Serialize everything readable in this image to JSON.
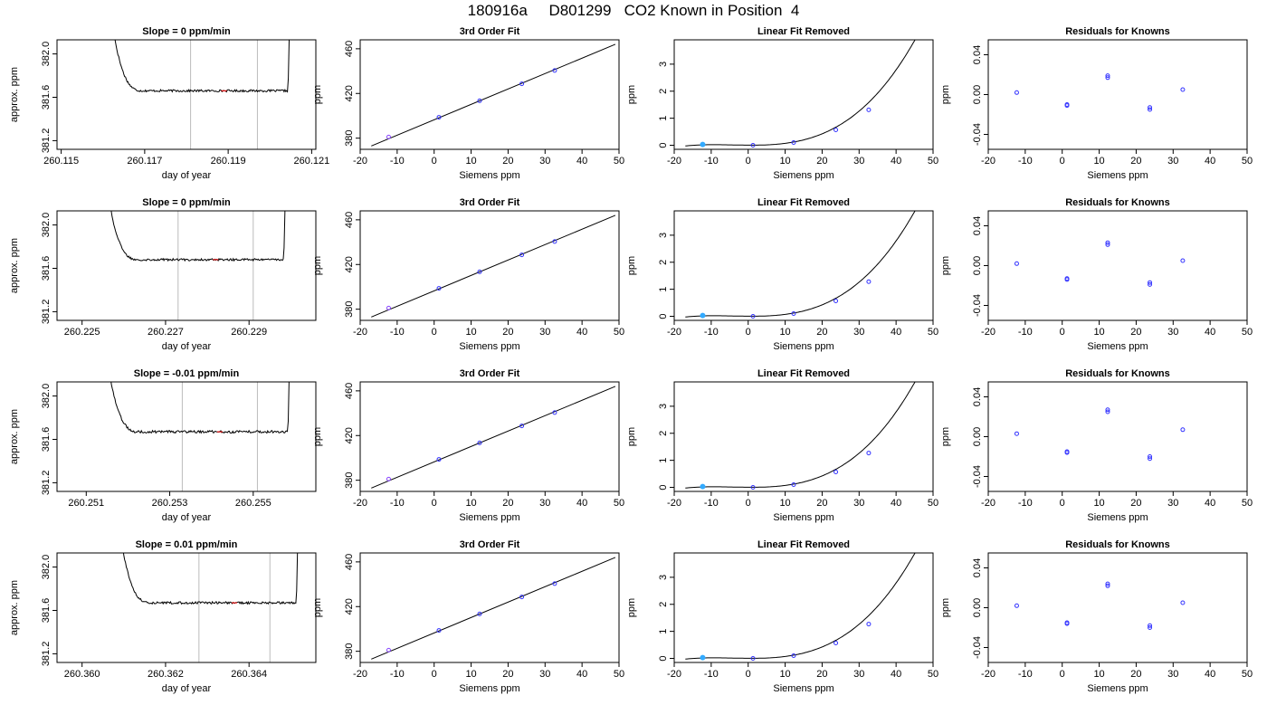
{
  "page": {
    "title": "180916a     D801299   CO2 Known in Position  4"
  },
  "colors": {
    "curve": "#000000",
    "known_point": "#3333ff",
    "reference_point": "#8844ff",
    "excluded_point": "#33aaff",
    "marker_vline": "#bbbbbb",
    "red_mark": "#ff0000"
  },
  "chart_data": [
    {
      "type": "line",
      "row": 1,
      "col": 1,
      "title": "Slope =  0  ppm/min",
      "xlabel": "day of year",
      "ylabel": "approx. ppm",
      "xlim": [
        260.1149,
        260.1211
      ],
      "ylim": [
        381.12,
        382.13
      ],
      "xticks": [
        260.115,
        260.117,
        260.119,
        260.121
      ],
      "xtick_labels": [
        "260.115",
        "260.117",
        "260.119",
        "260.121"
      ],
      "yticks": [
        381.2,
        381.6,
        382.0
      ],
      "ytick_labels": [
        "381.2",
        "381.6",
        "382.0"
      ],
      "vlines": [
        260.1181,
        260.1197
      ],
      "trace": {
        "x_start": 260.1161,
        "x_end": 260.1205,
        "level": 381.66,
        "rise_end": 382.13,
        "noise": 0.01
      }
    },
    {
      "type": "scatter",
      "row": 1,
      "col": 2,
      "title": "3rd Order Fit",
      "xlabel": "Siemens ppm",
      "ylabel": "ppm",
      "xlim": [
        -20,
        50
      ],
      "ylim": [
        370,
        468
      ],
      "xticks": [
        -20,
        -10,
        0,
        10,
        20,
        30,
        40,
        50
      ],
      "yticks": [
        380,
        420,
        460
      ],
      "fit_line": {
        "x": [
          -17,
          49
        ],
        "y": [
          373,
          464
        ]
      },
      "points": [
        {
          "x": -12.3,
          "y": 381,
          "kind": "reference"
        },
        {
          "x": 1.3,
          "y": 398.7,
          "kind": "known"
        },
        {
          "x": 12.3,
          "y": 413.4,
          "kind": "known"
        },
        {
          "x": 23.7,
          "y": 428.6,
          "kind": "known"
        },
        {
          "x": 32.6,
          "y": 440.6,
          "kind": "known"
        }
      ]
    },
    {
      "type": "scatter",
      "row": 1,
      "col": 3,
      "title": "Linear Fit Removed",
      "xlabel": "Siemens ppm",
      "ylabel": "ppm",
      "xlim": [
        -20,
        50
      ],
      "ylim": [
        -0.15,
        3.9
      ],
      "xticks": [
        -20,
        -10,
        0,
        10,
        20,
        30,
        40,
        50
      ],
      "yticks": [
        0,
        1,
        2,
        3
      ],
      "curve_x": [
        -17,
        49
      ],
      "points": [
        {
          "x": -12.3,
          "y": 0.03,
          "kind": "excluded"
        },
        {
          "x": 1.3,
          "y": 0.0,
          "kind": "known"
        },
        {
          "x": 12.3,
          "y": 0.1,
          "kind": "known"
        },
        {
          "x": 23.7,
          "y": 0.57,
          "kind": "known"
        },
        {
          "x": 32.6,
          "y": 1.31,
          "kind": "known"
        }
      ]
    },
    {
      "type": "scatter",
      "row": 1,
      "col": 4,
      "title": "Residuals for Knowns",
      "xlabel": "Siemens ppm",
      "ylabel": "ppm",
      "xlim": [
        -20,
        50
      ],
      "ylim": [
        -0.055,
        0.055
      ],
      "xticks": [
        -20,
        -10,
        0,
        10,
        20,
        30,
        40,
        50
      ],
      "yticks": [
        -0.04,
        0.0,
        0.04
      ],
      "ytick_labels": [
        "-0.04",
        "0.00",
        "0.04"
      ],
      "points": [
        {
          "x": -12.3,
          "y": 0.002,
          "kind": "known"
        },
        {
          "x": 1.3,
          "y": -0.01,
          "kind": "known"
        },
        {
          "x": 1.3,
          "y": -0.011,
          "kind": "known"
        },
        {
          "x": 12.3,
          "y": 0.017,
          "kind": "known"
        },
        {
          "x": 12.3,
          "y": 0.019,
          "kind": "known"
        },
        {
          "x": 23.7,
          "y": -0.013,
          "kind": "known"
        },
        {
          "x": 23.7,
          "y": -0.015,
          "kind": "known"
        },
        {
          "x": 32.6,
          "y": 0.005,
          "kind": "known"
        }
      ]
    },
    {
      "type": "line",
      "row": 2,
      "col": 1,
      "title": "Slope =  0  ppm/min",
      "xlabel": "day of year",
      "ylabel": "approx. ppm",
      "xlim": [
        260.2244,
        260.2306
      ],
      "ylim": [
        381.12,
        382.13
      ],
      "xticks": [
        260.225,
        260.227,
        260.229
      ],
      "xtick_labels": [
        "260.225",
        "260.227",
        "260.229"
      ],
      "yticks": [
        381.2,
        381.6,
        382.0
      ],
      "ytick_labels": [
        "381.2",
        "381.6",
        "382.0"
      ],
      "vlines": [
        260.2273,
        260.2291
      ],
      "trace": {
        "x_start": 260.2255,
        "x_end": 260.2299,
        "level": 381.68,
        "rise_end": 382.13,
        "noise": 0.01
      }
    },
    {
      "type": "scatter",
      "row": 2,
      "col": 2,
      "title": "3rd Order Fit",
      "xlabel": "Siemens ppm",
      "ylabel": "ppm",
      "xlim": [
        -20,
        50
      ],
      "ylim": [
        370,
        468
      ],
      "xticks": [
        -20,
        -10,
        0,
        10,
        20,
        30,
        40,
        50
      ],
      "yticks": [
        380,
        420,
        460
      ],
      "fit_line": {
        "x": [
          -17,
          49
        ],
        "y": [
          373,
          464
        ]
      },
      "points": [
        {
          "x": -12.3,
          "y": 381,
          "kind": "reference"
        },
        {
          "x": 1.3,
          "y": 398.7,
          "kind": "known"
        },
        {
          "x": 12.3,
          "y": 413.4,
          "kind": "known"
        },
        {
          "x": 23.7,
          "y": 428.6,
          "kind": "known"
        },
        {
          "x": 32.6,
          "y": 440.6,
          "kind": "known"
        }
      ]
    },
    {
      "type": "scatter",
      "row": 2,
      "col": 3,
      "title": "Linear Fit Removed",
      "xlabel": "Siemens ppm",
      "ylabel": "ppm",
      "xlim": [
        -20,
        50
      ],
      "ylim": [
        -0.15,
        3.9
      ],
      "xticks": [
        -20,
        -10,
        0,
        10,
        20,
        30,
        40,
        50
      ],
      "yticks": [
        0,
        1,
        2,
        3
      ],
      "curve_x": [
        -17,
        49
      ],
      "points": [
        {
          "x": -12.3,
          "y": 0.03,
          "kind": "excluded"
        },
        {
          "x": 1.3,
          "y": 0.0,
          "kind": "known"
        },
        {
          "x": 12.3,
          "y": 0.1,
          "kind": "known"
        },
        {
          "x": 23.7,
          "y": 0.57,
          "kind": "known"
        },
        {
          "x": 32.6,
          "y": 1.28,
          "kind": "known"
        }
      ]
    },
    {
      "type": "scatter",
      "row": 2,
      "col": 4,
      "title": "Residuals for Knowns",
      "xlabel": "Siemens ppm",
      "ylabel": "ppm",
      "xlim": [
        -20,
        50
      ],
      "ylim": [
        -0.055,
        0.055
      ],
      "xticks": [
        -20,
        -10,
        0,
        10,
        20,
        30,
        40,
        50
      ],
      "yticks": [
        -0.04,
        0.0,
        0.04
      ],
      "ytick_labels": [
        "-0.04",
        "0.00",
        "0.04"
      ],
      "points": [
        {
          "x": -12.3,
          "y": 0.002,
          "kind": "known"
        },
        {
          "x": 1.3,
          "y": -0.013,
          "kind": "known"
        },
        {
          "x": 1.3,
          "y": -0.014,
          "kind": "known"
        },
        {
          "x": 12.3,
          "y": 0.021,
          "kind": "known"
        },
        {
          "x": 12.3,
          "y": 0.023,
          "kind": "known"
        },
        {
          "x": 23.7,
          "y": -0.017,
          "kind": "known"
        },
        {
          "x": 23.7,
          "y": -0.019,
          "kind": "known"
        },
        {
          "x": 32.6,
          "y": 0.005,
          "kind": "known"
        }
      ]
    },
    {
      "type": "line",
      "row": 3,
      "col": 1,
      "title": "Slope =  -0.01  ppm/min",
      "xlabel": "day of year",
      "ylabel": "approx. ppm",
      "xlim": [
        260.2503,
        260.2565
      ],
      "ylim": [
        381.12,
        382.13
      ],
      "xticks": [
        260.251,
        260.253,
        260.255
      ],
      "xtick_labels": [
        "260.251",
        "260.253",
        "260.255"
      ],
      "yticks": [
        381.2,
        381.6,
        382.0
      ],
      "ytick_labels": [
        "381.2",
        "381.6",
        "382.0"
      ],
      "vlines": [
        260.2533,
        260.2551
      ],
      "trace": {
        "x_start": 260.2514,
        "x_end": 260.2559,
        "level": 381.67,
        "rise_end": 382.13,
        "noise": 0.012
      }
    },
    {
      "type": "scatter",
      "row": 3,
      "col": 2,
      "title": "3rd Order Fit",
      "xlabel": "Siemens ppm",
      "ylabel": "ppm",
      "xlim": [
        -20,
        50
      ],
      "ylim": [
        370,
        468
      ],
      "xticks": [
        -20,
        -10,
        0,
        10,
        20,
        30,
        40,
        50
      ],
      "yticks": [
        380,
        420,
        460
      ],
      "fit_line": {
        "x": [
          -17,
          49
        ],
        "y": [
          373,
          464
        ]
      },
      "points": [
        {
          "x": -12.3,
          "y": 381,
          "kind": "reference"
        },
        {
          "x": 1.3,
          "y": 398.7,
          "kind": "known"
        },
        {
          "x": 12.3,
          "y": 413.4,
          "kind": "known"
        },
        {
          "x": 23.7,
          "y": 428.6,
          "kind": "known"
        },
        {
          "x": 32.6,
          "y": 440.6,
          "kind": "known"
        }
      ]
    },
    {
      "type": "scatter",
      "row": 3,
      "col": 3,
      "title": "Linear Fit Removed",
      "xlabel": "Siemens ppm",
      "ylabel": "ppm",
      "xlim": [
        -20,
        50
      ],
      "ylim": [
        -0.15,
        3.9
      ],
      "xticks": [
        -20,
        -10,
        0,
        10,
        20,
        30,
        40,
        50
      ],
      "yticks": [
        0,
        1,
        2,
        3
      ],
      "curve_x": [
        -17,
        49
      ],
      "points": [
        {
          "x": -12.3,
          "y": 0.03,
          "kind": "excluded"
        },
        {
          "x": 1.3,
          "y": 0.0,
          "kind": "known"
        },
        {
          "x": 12.3,
          "y": 0.1,
          "kind": "known"
        },
        {
          "x": 23.7,
          "y": 0.57,
          "kind": "known"
        },
        {
          "x": 32.6,
          "y": 1.27,
          "kind": "known"
        }
      ]
    },
    {
      "type": "scatter",
      "row": 3,
      "col": 4,
      "title": "Residuals for Knowns",
      "xlabel": "Siemens ppm",
      "ylabel": "ppm",
      "xlim": [
        -20,
        50
      ],
      "ylim": [
        -0.055,
        0.055
      ],
      "xticks": [
        -20,
        -10,
        0,
        10,
        20,
        30,
        40,
        50
      ],
      "yticks": [
        -0.04,
        0.0,
        0.04
      ],
      "ytick_labels": [
        "-0.04",
        "0.00",
        "0.04"
      ],
      "points": [
        {
          "x": -12.3,
          "y": 0.003,
          "kind": "known"
        },
        {
          "x": 1.3,
          "y": -0.015,
          "kind": "known"
        },
        {
          "x": 1.3,
          "y": -0.016,
          "kind": "known"
        },
        {
          "x": 12.3,
          "y": 0.025,
          "kind": "known"
        },
        {
          "x": 12.3,
          "y": 0.027,
          "kind": "known"
        },
        {
          "x": 23.7,
          "y": -0.02,
          "kind": "known"
        },
        {
          "x": 23.7,
          "y": -0.022,
          "kind": "known"
        },
        {
          "x": 32.6,
          "y": 0.007,
          "kind": "known"
        }
      ]
    },
    {
      "type": "line",
      "row": 4,
      "col": 1,
      "title": "Slope =  0.01  ppm/min",
      "xlabel": "day of year",
      "ylabel": "approx. ppm",
      "xlim": [
        260.3594,
        260.3656
      ],
      "ylim": [
        381.12,
        382.13
      ],
      "xticks": [
        260.36,
        260.362,
        260.364
      ],
      "xtick_labels": [
        "260.360",
        "260.362",
        "260.364"
      ],
      "yticks": [
        381.2,
        381.6,
        382.0
      ],
      "ytick_labels": [
        "381.2",
        "381.6",
        "382.0"
      ],
      "vlines": [
        260.3628,
        260.3645
      ],
      "trace": {
        "x_start": 260.3608,
        "x_end": 260.3652,
        "level": 381.67,
        "rise_end": 382.13,
        "noise": 0.01
      }
    },
    {
      "type": "scatter",
      "row": 4,
      "col": 2,
      "title": "3rd Order Fit",
      "xlabel": "Siemens ppm",
      "ylabel": "ppm",
      "xlim": [
        -20,
        50
      ],
      "ylim": [
        370,
        468
      ],
      "xticks": [
        -20,
        -10,
        0,
        10,
        20,
        30,
        40,
        50
      ],
      "yticks": [
        380,
        420,
        460
      ],
      "fit_line": {
        "x": [
          -17,
          49
        ],
        "y": [
          373,
          464
        ]
      },
      "points": [
        {
          "x": -12.3,
          "y": 381,
          "kind": "reference"
        },
        {
          "x": 1.3,
          "y": 398.7,
          "kind": "known"
        },
        {
          "x": 12.3,
          "y": 413.4,
          "kind": "known"
        },
        {
          "x": 23.7,
          "y": 428.6,
          "kind": "known"
        },
        {
          "x": 32.6,
          "y": 440.6,
          "kind": "known"
        }
      ]
    },
    {
      "type": "scatter",
      "row": 4,
      "col": 3,
      "title": "Linear Fit Removed",
      "xlabel": "Siemens ppm",
      "ylabel": "ppm",
      "xlim": [
        -20,
        50
      ],
      "ylim": [
        -0.15,
        3.9
      ],
      "xticks": [
        -20,
        -10,
        0,
        10,
        20,
        30,
        40,
        50
      ],
      "yticks": [
        0,
        1,
        2,
        3
      ],
      "curve_x": [
        -17,
        49
      ],
      "points": [
        {
          "x": -12.3,
          "y": 0.03,
          "kind": "excluded"
        },
        {
          "x": 1.3,
          "y": 0.0,
          "kind": "known"
        },
        {
          "x": 12.3,
          "y": 0.1,
          "kind": "known"
        },
        {
          "x": 23.7,
          "y": 0.57,
          "kind": "known"
        },
        {
          "x": 32.6,
          "y": 1.27,
          "kind": "known"
        }
      ]
    },
    {
      "type": "scatter",
      "row": 4,
      "col": 4,
      "title": "Residuals for Knowns",
      "xlabel": "Siemens ppm",
      "ylabel": "ppm",
      "xlim": [
        -20,
        50
      ],
      "ylim": [
        -0.055,
        0.055
      ],
      "xticks": [
        -20,
        -10,
        0,
        10,
        20,
        30,
        40,
        50
      ],
      "yticks": [
        -0.04,
        0.0,
        0.04
      ],
      "ytick_labels": [
        "-0.04",
        "0.00",
        "0.04"
      ],
      "points": [
        {
          "x": -12.3,
          "y": 0.002,
          "kind": "known"
        },
        {
          "x": 1.3,
          "y": -0.015,
          "kind": "known"
        },
        {
          "x": 1.3,
          "y": -0.016,
          "kind": "known"
        },
        {
          "x": 12.3,
          "y": 0.022,
          "kind": "known"
        },
        {
          "x": 12.3,
          "y": 0.024,
          "kind": "known"
        },
        {
          "x": 23.7,
          "y": -0.018,
          "kind": "known"
        },
        {
          "x": 23.7,
          "y": -0.02,
          "kind": "known"
        },
        {
          "x": 32.6,
          "y": 0.005,
          "kind": "known"
        }
      ]
    }
  ]
}
